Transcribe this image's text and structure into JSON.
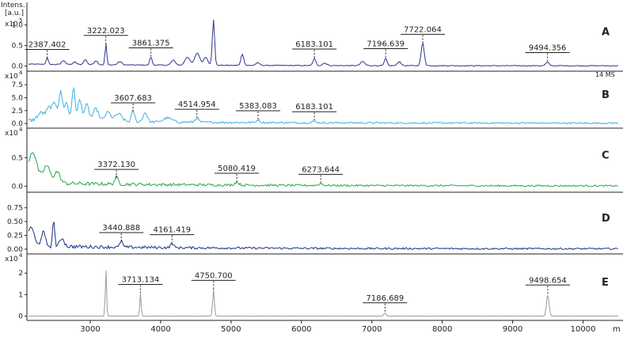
{
  "chart_data": {
    "type": "line",
    "xlim": [
      2100,
      10500
    ],
    "x_ticks": [
      3000,
      4000,
      5000,
      6000,
      7000,
      8000,
      9000,
      10000
    ],
    "x_axis_label": "m",
    "grid": false,
    "panels": [
      {
        "label": "A",
        "y_label_lines": [
          "Intens.",
          "[a.u.]"
        ],
        "y_multiplier": "x10",
        "y_exponent": "5",
        "y_ticks": [
          "1.0",
          "0.5",
          "0.0"
        ],
        "y_tick_values": [
          1.0,
          0.5,
          0.0
        ],
        "ylim": [
          -0.05,
          1.32
        ],
        "color": "#2f3590",
        "note": "14 MS",
        "peaks": [
          {
            "x": 2387.402,
            "height": 0.16,
            "width": 15,
            "label": "2387.402"
          },
          {
            "x": 2620,
            "height": 0.1,
            "width": 25
          },
          {
            "x": 2780,
            "height": 0.06,
            "width": 25
          },
          {
            "x": 2930,
            "height": 0.12,
            "width": 25
          },
          {
            "x": 3080,
            "height": 0.1,
            "width": 25
          },
          {
            "x": 3222.023,
            "height": 0.52,
            "width": 12,
            "label": "3222.023"
          },
          {
            "x": 3420,
            "height": 0.08,
            "width": 30
          },
          {
            "x": 3861.375,
            "height": 0.2,
            "width": 16,
            "label": "3861.375"
          },
          {
            "x": 4180,
            "height": 0.12,
            "width": 30
          },
          {
            "x": 4380,
            "height": 0.2,
            "width": 35
          },
          {
            "x": 4520,
            "height": 0.3,
            "width": 35
          },
          {
            "x": 4640,
            "height": 0.2,
            "width": 30
          },
          {
            "x": 4750,
            "height": 1.12,
            "width": 16
          },
          {
            "x": 5160,
            "height": 0.28,
            "width": 20
          },
          {
            "x": 5380,
            "height": 0.06,
            "width": 30
          },
          {
            "x": 6183.101,
            "height": 0.17,
            "width": 20,
            "label": "6183.101"
          },
          {
            "x": 6330,
            "height": 0.06,
            "width": 30
          },
          {
            "x": 6870,
            "height": 0.1,
            "width": 30
          },
          {
            "x": 7196.639,
            "height": 0.18,
            "width": 18,
            "label": "7196.639"
          },
          {
            "x": 7390,
            "height": 0.1,
            "width": 25
          },
          {
            "x": 7722.064,
            "height": 0.55,
            "width": 22,
            "label": "7722.064"
          },
          {
            "x": 9494.356,
            "height": 0.08,
            "width": 25,
            "label": "9494.356"
          }
        ]
      },
      {
        "label": "B",
        "y_multiplier": "x10",
        "y_exponent": "4",
        "y_ticks": [
          "7.5",
          "5.0",
          "2.5",
          "0.0"
        ],
        "y_tick_values": [
          7.5,
          5.0,
          2.5,
          0.0
        ],
        "ylim": [
          -0.3,
          8.3
        ],
        "color": "#3db0e0",
        "peaks": [
          {
            "x": 2300,
            "height": 1.5,
            "width": 50
          },
          {
            "x": 2420,
            "height": 2.5,
            "width": 40
          },
          {
            "x": 2500,
            "height": 3.2,
            "width": 30
          },
          {
            "x": 2580,
            "height": 5.5,
            "width": 25
          },
          {
            "x": 2660,
            "height": 3.5,
            "width": 30
          },
          {
            "x": 2760,
            "height": 6.4,
            "width": 22
          },
          {
            "x": 2850,
            "height": 4.0,
            "width": 30
          },
          {
            "x": 2950,
            "height": 3.2,
            "width": 30
          },
          {
            "x": 3080,
            "height": 2.4,
            "width": 40
          },
          {
            "x": 3250,
            "height": 1.8,
            "width": 40
          },
          {
            "x": 3400,
            "height": 1.5,
            "width": 50
          },
          {
            "x": 3607.683,
            "height": 2.1,
            "width": 22,
            "label": "3607.683"
          },
          {
            "x": 3780,
            "height": 1.8,
            "width": 30
          },
          {
            "x": 4100,
            "height": 0.8,
            "width": 60
          },
          {
            "x": 4514.954,
            "height": 0.8,
            "width": 25,
            "label": "4514.954"
          },
          {
            "x": 5383.083,
            "height": 0.5,
            "width": 25,
            "label": "5383.083"
          },
          {
            "x": 6183.101,
            "height": 0.3,
            "width": 25,
            "label": "6183.101"
          }
        ]
      },
      {
        "label": "C",
        "y_multiplier": "x10",
        "y_exponent": "4",
        "y_ticks": [
          "0.5",
          "0.0"
        ],
        "y_tick_values": [
          0.5,
          0.0
        ],
        "ylim": [
          -0.05,
          0.85
        ],
        "color": "#2aa845",
        "peaks": [
          {
            "x": 2180,
            "height": 0.55,
            "width": 60
          },
          {
            "x": 2380,
            "height": 0.3,
            "width": 50
          },
          {
            "x": 2530,
            "height": 0.2,
            "width": 40
          },
          {
            "x": 3372.13,
            "height": 0.12,
            "width": 25,
            "label": "3372.130"
          },
          {
            "x": 5080.419,
            "height": 0.05,
            "width": 30,
            "label": "5080.419"
          },
          {
            "x": 6273.644,
            "height": 0.03,
            "width": 30,
            "label": "6273.644"
          }
        ]
      },
      {
        "label": "D",
        "y_ticks": [
          "0.75",
          "0.50",
          "0.25",
          "0.00"
        ],
        "y_tick_values": [
          0.75,
          0.5,
          0.25,
          0.0
        ],
        "ylim": [
          -0.03,
          0.86
        ],
        "color": "#1c2f88",
        "peaks": [
          {
            "x": 2160,
            "height": 0.35,
            "width": 40
          },
          {
            "x": 2330,
            "height": 0.25,
            "width": 30
          },
          {
            "x": 2480,
            "height": 0.5,
            "width": 14
          },
          {
            "x": 2600,
            "height": 0.15,
            "width": 30
          },
          {
            "x": 3440.888,
            "height": 0.12,
            "width": 18,
            "label": "3440.888"
          },
          {
            "x": 4161.419,
            "height": 0.08,
            "width": 20,
            "label": "4161.419"
          }
        ]
      },
      {
        "label": "E",
        "y_multiplier": "x10",
        "y_exponent": "4",
        "y_ticks": [
          "2",
          "1",
          "0"
        ],
        "y_tick_values": [
          2,
          1,
          0
        ],
        "ylim": [
          -0.05,
          2.45
        ],
        "color": "#9a9a9a",
        "peaks": [
          {
            "x": 3222,
            "height": 2.2,
            "width": 9
          },
          {
            "x": 3713.134,
            "height": 1.05,
            "width": 10,
            "label": "3713.134"
          },
          {
            "x": 4750.7,
            "height": 1.25,
            "width": 12,
            "label": "4750.700"
          },
          {
            "x": 7186.689,
            "height": 0.15,
            "width": 16,
            "label": "7186.689"
          },
          {
            "x": 9498.654,
            "height": 1.02,
            "width": 18,
            "label": "9498.654"
          }
        ]
      }
    ]
  }
}
